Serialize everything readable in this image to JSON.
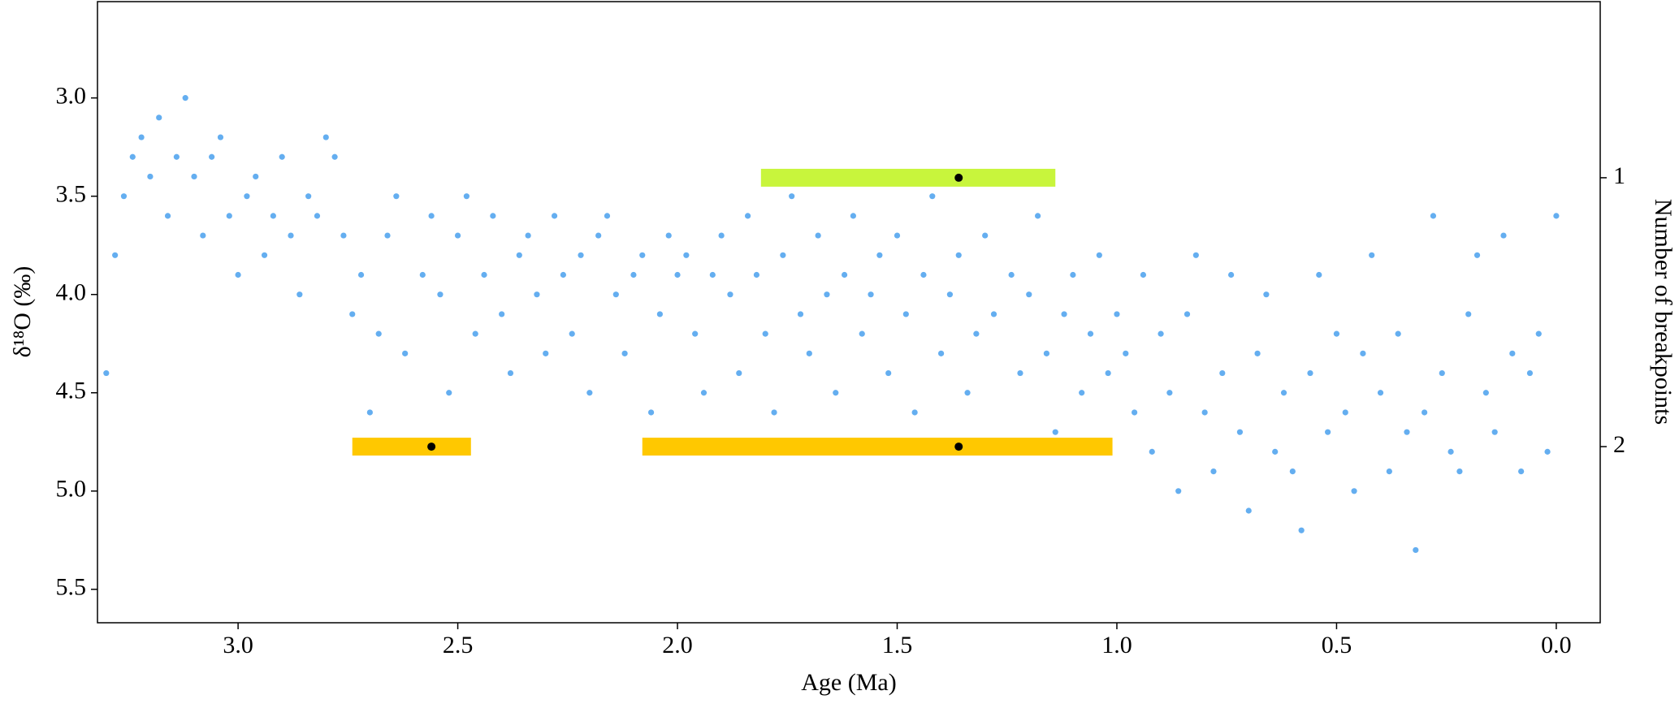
{
  "chart_data": {
    "type": "scatter",
    "xlabel": "Age (Ma)",
    "ylabel": "δ¹⁸O (‰)",
    "y2label": "Number of breakpoints",
    "xlim": [
      3.32,
      -0.1
    ],
    "xticks": [
      {
        "value": 3.0,
        "label": "3.0"
      },
      2.5,
      {
        "value": 2.0,
        "label": "2.0"
      },
      1.5,
      {
        "value": 1.0,
        "label": "1.0"
      },
      0.5,
      {
        "value": 0.0,
        "label": "0.0"
      }
    ],
    "ylim": [
      5.67,
      2.51
    ],
    "yticks": [
      {
        "value": 3.0,
        "label": "3.0"
      },
      3.5,
      {
        "value": 4.0,
        "label": "4.0"
      },
      4.5,
      {
        "value": 5.0,
        "label": "5.0"
      },
      5.5
    ],
    "y2lim": [
      2.655,
      0.345
    ],
    "y2ticks": [
      1,
      2
    ],
    "color": "#64aef0",
    "x": [
      3.3,
      3.28,
      3.26,
      3.24,
      3.22,
      3.2,
      3.18,
      3.16,
      3.14,
      3.12,
      3.1,
      3.08,
      3.06,
      3.04,
      3.02,
      3.0,
      2.98,
      2.96,
      2.94,
      2.92,
      2.9,
      2.88,
      2.86,
      2.84,
      2.82,
      2.8,
      2.78,
      2.76,
      2.74,
      2.72,
      2.7,
      2.68,
      2.66,
      2.64,
      2.62,
      2.6,
      2.58,
      2.56,
      2.54,
      2.52,
      2.5,
      2.48,
      2.46,
      2.44,
      2.42,
      2.4,
      2.38,
      2.36,
      2.34,
      2.32,
      2.3,
      2.28,
      2.26,
      2.24,
      2.22,
      2.2,
      2.18,
      2.16,
      2.14,
      2.12,
      2.1,
      2.08,
      2.06,
      2.04,
      2.02,
      2.0,
      1.98,
      1.96,
      1.94,
      1.92,
      1.9,
      1.88,
      1.86,
      1.84,
      1.82,
      1.8,
      1.78,
      1.76,
      1.74,
      1.72,
      1.7,
      1.68,
      1.66,
      1.64,
      1.62,
      1.6,
      1.58,
      1.56,
      1.54,
      1.52,
      1.5,
      1.48,
      1.46,
      1.44,
      1.42,
      1.4,
      1.38,
      1.36,
      1.34,
      1.32,
      1.3,
      1.28,
      1.26,
      1.24,
      1.22,
      1.2,
      1.18,
      1.16,
      1.14,
      1.12,
      1.1,
      1.08,
      1.06,
      1.04,
      1.02,
      1.0,
      0.98,
      0.96,
      0.94,
      0.92,
      0.9,
      0.88,
      0.86,
      0.84,
      0.82,
      0.8,
      0.78,
      0.76,
      0.74,
      0.72,
      0.7,
      0.68,
      0.66,
      0.64,
      0.62,
      0.6,
      0.58,
      0.56,
      0.54,
      0.52,
      0.5,
      0.48,
      0.46,
      0.44,
      0.42,
      0.4,
      0.38,
      0.36,
      0.34,
      0.32,
      0.3,
      0.28,
      0.26,
      0.24,
      0.22,
      0.2,
      0.18,
      0.16,
      0.14,
      0.12,
      0.1,
      0.08,
      0.06,
      0.04,
      0.02,
      0.0
    ],
    "values": [
      4.4,
      3.8,
      3.5,
      3.3,
      3.2,
      3.4,
      3.1,
      3.6,
      3.3,
      3.0,
      3.4,
      3.7,
      3.3,
      3.2,
      3.6,
      3.9,
      3.5,
      3.4,
      3.8,
      3.6,
      3.3,
      3.7,
      4.0,
      3.5,
      3.6,
      3.2,
      3.3,
      3.7,
      4.1,
      3.9,
      4.6,
      4.2,
      3.7,
      3.5,
      4.3,
      4.8,
      3.9,
      3.6,
      4.0,
      4.5,
      3.7,
      3.5,
      4.2,
      3.9,
      3.6,
      4.1,
      4.4,
      3.8,
      3.7,
      4.0,
      4.3,
      3.6,
      3.9,
      4.2,
      3.8,
      4.5,
      3.7,
      3.6,
      4.0,
      4.3,
      3.9,
      3.8,
      4.6,
      4.1,
      3.7,
      3.9,
      3.8,
      4.2,
      4.5,
      3.9,
      3.7,
      4.0,
      4.4,
      3.6,
      3.9,
      4.2,
      4.6,
      3.8,
      3.5,
      4.1,
      4.3,
      3.7,
      4.0,
      4.5,
      3.9,
      3.6,
      4.2,
      4.0,
      3.8,
      4.4,
      3.7,
      4.1,
      4.6,
      3.9,
      3.5,
      4.3,
      4.0,
      3.8,
      4.5,
      4.2,
      3.7,
      4.1,
      4.8,
      3.9,
      4.4,
      4.0,
      3.6,
      4.3,
      4.7,
      4.1,
      3.9,
      4.5,
      4.2,
      3.8,
      4.4,
      4.1,
      4.3,
      4.6,
      3.9,
      4.8,
      4.2,
      4.5,
      5.0,
      4.1,
      3.8,
      4.6,
      4.9,
      4.4,
      3.9,
      4.7,
      5.1,
      4.3,
      4.0,
      4.8,
      4.5,
      4.9,
      5.2,
      4.4,
      3.9,
      4.7,
      4.2,
      4.6,
      5.0,
      4.3,
      3.8,
      4.5,
      4.9,
      4.2,
      4.7,
      5.3,
      4.6,
      3.6,
      4.4,
      4.8,
      4.9,
      4.1,
      3.8,
      4.5,
      4.7,
      3.7,
      4.3,
      4.9,
      4.4,
      4.2,
      4.8,
      3.6
    ],
    "intervals": [
      {
        "x": [
          1.81,
          1.14
        ],
        "estimate": 1.36,
        "y2": 1,
        "color": "#c8f53c"
      },
      {
        "x": [
          2.74,
          2.47
        ],
        "estimate": 2.56,
        "y2": 2,
        "color": "#ffc800"
      },
      {
        "x": [
          2.08,
          1.01
        ],
        "estimate": 1.36,
        "y2": 2,
        "color": "#ffc800"
      }
    ]
  }
}
